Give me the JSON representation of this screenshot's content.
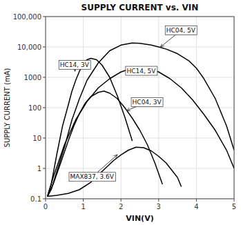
{
  "chart_data": {
    "type": "line",
    "title": "SUPPLY CURRENT vs. VIN",
    "x_label": "VIN(V)",
    "y_label": "SUPPLY CURRENT (mA)",
    "log": "y",
    "grid": true,
    "color": "#000000",
    "xlim": [
      0,
      5
    ],
    "ylim": [
      0.1,
      100000
    ],
    "xticks": [
      0,
      1,
      2,
      3,
      4,
      5
    ],
    "yticks": [
      0.1,
      1,
      10,
      100,
      1000,
      {
        "value": 10000,
        "label": "10,000"
      },
      {
        "value": 100000,
        "label": "100,000"
      }
    ],
    "series": [
      {
        "x": [
          0.05,
          0.15,
          0.3,
          0.5,
          0.7,
          0.9,
          1.1,
          1.4,
          1.7,
          2.0,
          2.3,
          2.5,
          2.8,
          3.0,
          3.2,
          3.5,
          3.8,
          4.0,
          4.2,
          4.5,
          4.8,
          5.0
        ],
        "values": [
          0.12,
          0.2,
          0.8,
          5,
          40,
          200,
          800,
          3000,
          7500,
          11500,
          13500,
          13200,
          11500,
          10000,
          8500,
          6000,
          3500,
          2000,
          900,
          200,
          25,
          4
        ]
      },
      {
        "x": [
          0.05,
          0.15,
          0.3,
          0.45,
          0.6,
          0.7,
          0.8,
          0.9,
          1.0,
          1.1,
          1.2,
          1.35,
          1.5,
          1.7,
          1.9,
          2.1,
          2.3
        ],
        "values": [
          0.12,
          0.3,
          3,
          25,
          120,
          350,
          800,
          1600,
          2800,
          3800,
          4200,
          3800,
          2500,
          1000,
          250,
          50,
          8
        ]
      },
      {
        "x": [
          0.05,
          0.2,
          0.5,
          0.8,
          1.1,
          1.4,
          1.7,
          2.0,
          2.3,
          2.5,
          2.8,
          3.0,
          3.3,
          3.6,
          3.9,
          4.2,
          4.5,
          4.8,
          5.0
        ],
        "values": [
          0.12,
          0.5,
          6,
          40,
          160,
          450,
          900,
          1500,
          2000,
          2100,
          1800,
          1500,
          900,
          450,
          180,
          60,
          18,
          4,
          1
        ]
      },
      {
        "x": [
          0.05,
          0.2,
          0.4,
          0.6,
          0.75,
          0.9,
          1.05,
          1.2,
          1.4,
          1.55,
          1.7,
          1.9,
          2.1,
          2.3,
          2.5,
          2.7,
          2.9,
          3.1
        ],
        "values": [
          0.12,
          0.3,
          1.5,
          8,
          25,
          65,
          140,
          230,
          320,
          350,
          300,
          200,
          100,
          45,
          18,
          6,
          1.5,
          0.3
        ]
      },
      {
        "x": [
          0.05,
          0.3,
          0.6,
          0.9,
          1.2,
          1.5,
          1.8,
          2.0,
          2.2,
          2.4,
          2.6,
          2.8,
          3.0,
          3.2,
          3.5,
          3.6
        ],
        "values": [
          0.12,
          0.13,
          0.15,
          0.2,
          0.35,
          0.8,
          1.8,
          2.8,
          4.0,
          5.0,
          4.8,
          3.8,
          2.5,
          1.5,
          0.5,
          0.25
        ]
      }
    ],
    "annotations": [
      {
        "text": "HC04, 5V",
        "x": 3.05,
        "y": 10000,
        "text_x": 3.2,
        "text_y": 30000
      },
      {
        "text": "HC14, 3V",
        "x": 0.78,
        "y": 1600,
        "text_x": 0.38,
        "text_y": 2200
      },
      {
        "text": "HC14, 5V",
        "x": 2.35,
        "y": 1950,
        "text_x": 2.15,
        "text_y": 1400
      },
      {
        "text": "HC04, 3V",
        "x": 2.15,
        "y": 80,
        "text_x": 2.3,
        "text_y": 130
      },
      {
        "text": "MAX837, 3.6V",
        "x": 1.9,
        "y": 2.8,
        "text_x": 0.65,
        "text_y": 0.45
      }
    ]
  }
}
